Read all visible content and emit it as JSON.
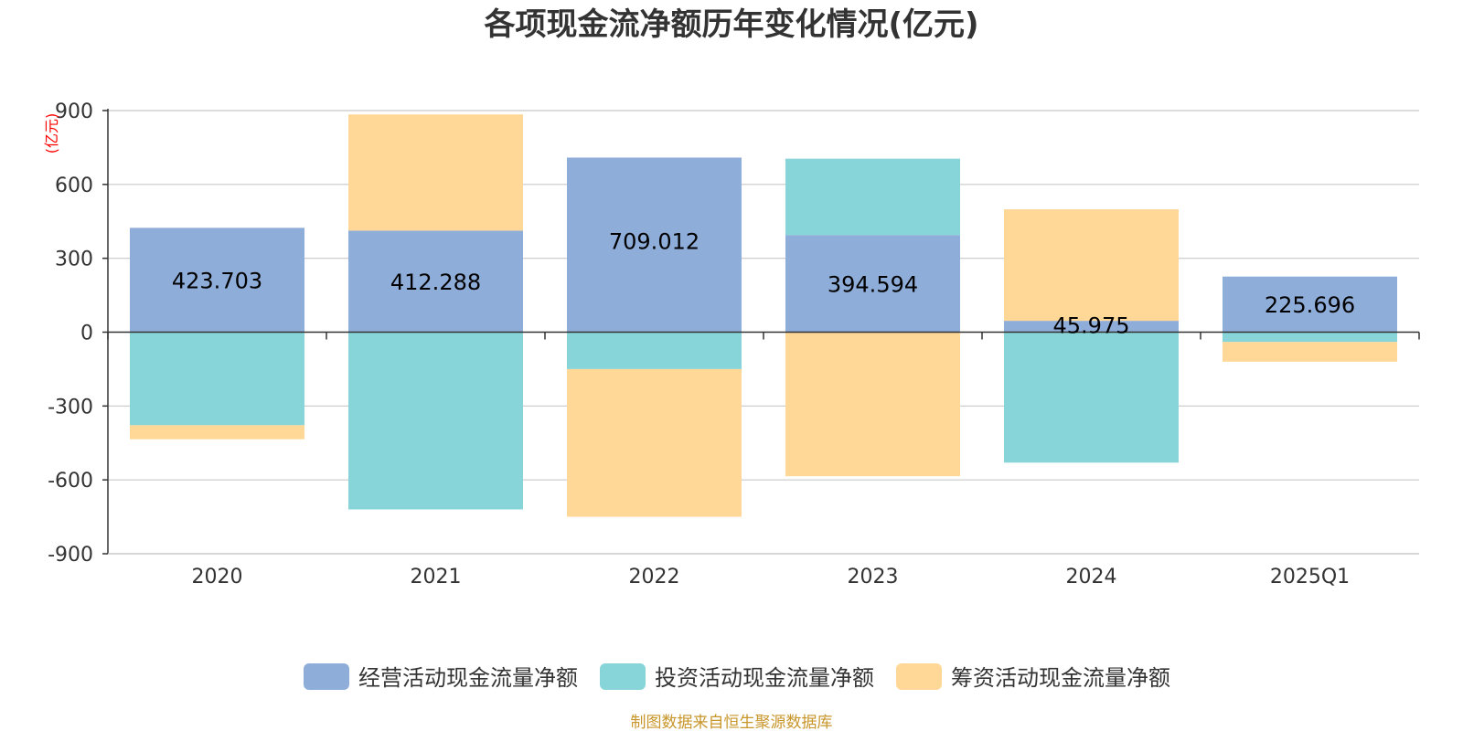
{
  "chart_data": {
    "type": "bar",
    "stacked": true,
    "title": "各项现金流净额历年变化情况(亿元)",
    "ylabel": "(亿元)",
    "xlabel": "",
    "categories": [
      "2020",
      "2021",
      "2022",
      "2023",
      "2024",
      "2025Q1"
    ],
    "ylim": [
      -900,
      900
    ],
    "yticks": [
      900,
      600,
      300,
      0,
      -300,
      -600,
      -900
    ],
    "grid": true,
    "legend_position": "bottom",
    "series": [
      {
        "name": "经营活动现金流量净额",
        "color": "#8eadd9",
        "values": [
          423.703,
          412.288,
          709.012,
          394.594,
          45.975,
          225.696
        ],
        "labels": [
          "423.703",
          "412.288",
          "709.012",
          "394.594",
          "45.975",
          "225.696"
        ]
      },
      {
        "name": "投资活动现金流量净额",
        "color": "#87d5d9",
        "values": [
          -378,
          -720,
          -150,
          310,
          -530,
          -40
        ]
      },
      {
        "name": "筹资活动现金流量净额",
        "color": "#ffd898",
        "values": [
          -57,
          472,
          -600,
          -585,
          453,
          -80
        ]
      }
    ]
  },
  "source": "制图数据来自恒生聚源数据库"
}
